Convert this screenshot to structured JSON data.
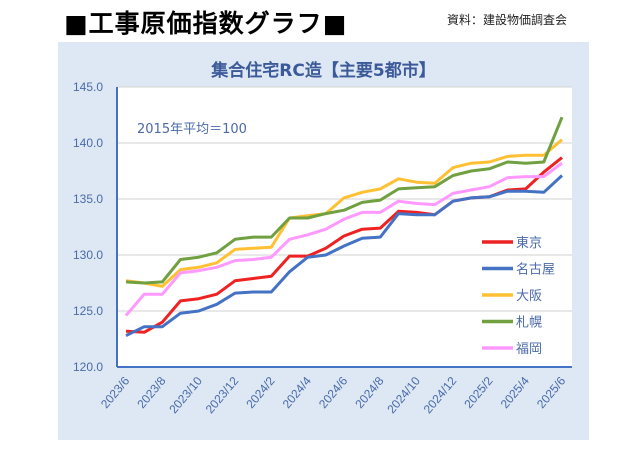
{
  "header": {
    "title": "■工事原価指数グラフ■",
    "source": "資料：建設物価調査会"
  },
  "chart_data": {
    "type": "line",
    "title": "集合住宅RC造【主要5都市】",
    "annotation": "2015年平均＝100",
    "xlabel": "",
    "ylabel": "",
    "ylim": [
      120,
      145
    ],
    "yticks": [
      "120.0",
      "125.0",
      "130.0",
      "135.0",
      "140.0",
      "145.0"
    ],
    "x": [
      "2023/6",
      "2023/7",
      "2023/8",
      "2023/9",
      "2023/10",
      "2023/11",
      "2023/12",
      "2024/1",
      "2024/2",
      "2024/3",
      "2024/4",
      "2024/5",
      "2024/6",
      "2024/7",
      "2024/8",
      "2024/9",
      "2024/10",
      "2024/11",
      "2024/12",
      "2025/1",
      "2025/2",
      "2025/3",
      "2025/4",
      "2025/5",
      "2025/6"
    ],
    "xticks": [
      "2023/6",
      "2023/8",
      "2023/10",
      "2023/12",
      "2024/2",
      "2024/4",
      "2024/6",
      "2024/8",
      "2024/10",
      "2024/12",
      "2025/2",
      "2025/4",
      "2025/6"
    ],
    "legend_position": "right",
    "grid": true,
    "series": [
      {
        "name": "東京",
        "color": "#ee2222",
        "values": [
          123.2,
          123.1,
          124.0,
          125.9,
          126.1,
          126.5,
          127.7,
          127.9,
          128.1,
          129.9,
          129.9,
          130.6,
          131.7,
          132.3,
          132.4,
          133.9,
          133.8,
          133.6,
          134.8,
          135.1,
          135.2,
          135.8,
          135.9,
          137.4,
          138.7
        ]
      },
      {
        "name": "名古屋",
        "color": "#4472c4",
        "values": [
          122.8,
          123.6,
          123.6,
          124.8,
          125.0,
          125.6,
          126.6,
          126.7,
          126.7,
          128.5,
          129.8,
          130.0,
          130.8,
          131.5,
          131.6,
          133.7,
          133.6,
          133.6,
          134.8,
          135.1,
          135.2,
          135.7,
          135.7,
          135.6,
          137.1
        ]
      },
      {
        "name": "大阪",
        "color": "#ffc033",
        "values": [
          127.7,
          127.5,
          127.2,
          128.7,
          128.9,
          129.3,
          130.5,
          130.6,
          130.7,
          133.3,
          133.5,
          133.7,
          135.1,
          135.6,
          135.9,
          136.8,
          136.5,
          136.4,
          137.8,
          138.2,
          138.3,
          138.8,
          138.9,
          138.9,
          140.3
        ]
      },
      {
        "name": "札幌",
        "color": "#70a040",
        "values": [
          127.6,
          127.5,
          127.6,
          129.6,
          129.8,
          130.2,
          131.4,
          131.6,
          131.6,
          133.3,
          133.3,
          133.7,
          134.0,
          134.7,
          134.9,
          135.9,
          136.0,
          136.1,
          137.1,
          137.5,
          137.7,
          138.3,
          138.2,
          138.3,
          142.3
        ]
      },
      {
        "name": "福岡",
        "color": "#ff99ff",
        "values": [
          124.6,
          126.5,
          126.5,
          128.4,
          128.6,
          128.9,
          129.5,
          129.6,
          129.8,
          131.4,
          131.8,
          132.3,
          133.2,
          133.8,
          133.8,
          134.8,
          134.6,
          134.5,
          135.5,
          135.8,
          136.1,
          136.9,
          137.0,
          137.0,
          138.2
        ]
      }
    ]
  }
}
